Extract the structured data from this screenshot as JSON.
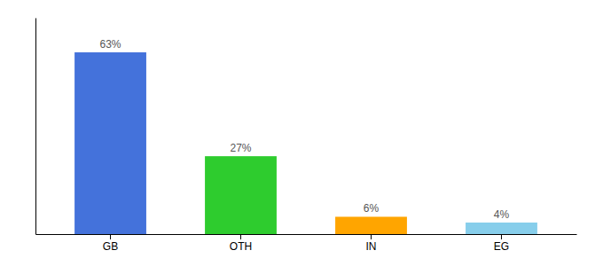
{
  "chart_data": {
    "type": "bar",
    "categories": [
      "GB",
      "OTH",
      "IN",
      "EG"
    ],
    "values": [
      63,
      27,
      6,
      4
    ],
    "value_labels": [
      "63%",
      "27%",
      "6%",
      "4%"
    ],
    "colors": [
      "#4472db",
      "#2ecc2e",
      "#ffa500",
      "#87ceeb"
    ],
    "ylim": [
      0,
      75
    ],
    "data_labels": true,
    "tick_labels": "x"
  }
}
